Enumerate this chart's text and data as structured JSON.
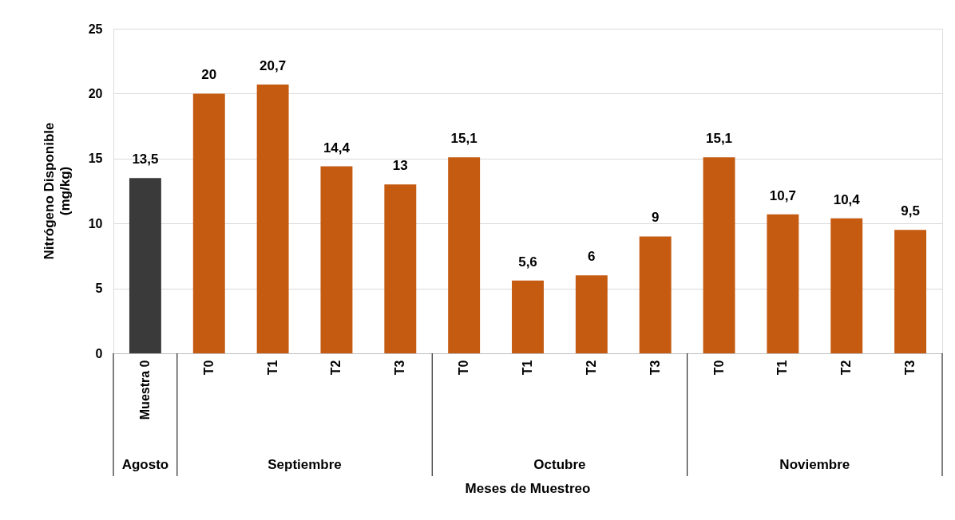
{
  "chart_data": {
    "type": "bar",
    "xlabel": "Meses de Muestreo",
    "ylabel": "Nitrógeno Disponible\n(mg/kg)",
    "categories": [
      "Muestra 0",
      "T0",
      "T1",
      "T2",
      "T3",
      "T0",
      "T1",
      "T2",
      "T3",
      "T0",
      "T1",
      "T2",
      "T3"
    ],
    "values": [
      13.5,
      20,
      20.7,
      14.4,
      13,
      15.1,
      5.6,
      6,
      9,
      15.1,
      10.7,
      10.4,
      9.5
    ],
    "colors": [
      "#3a3a3a",
      "#c55a11",
      "#c55a11",
      "#c55a11",
      "#c55a11",
      "#c55a11",
      "#c55a11",
      "#c55a11",
      "#c55a11",
      "#c55a11",
      "#c55a11",
      "#c55a11",
      "#c55a11"
    ],
    "value_labels": [
      "13,5",
      "20",
      "20,7",
      "14,4",
      "13",
      "15,1",
      "5,6",
      "6",
      "9",
      "15,1",
      "10,7",
      "10,4",
      "9,5"
    ],
    "annotations": [
      "Agosto",
      "Septiembre",
      "Octubre",
      "Noviembre"
    ],
    "ylim": [
      0,
      25
    ],
    "yticks": [
      0,
      5,
      10,
      15,
      20,
      25
    ],
    "grid": "y"
  }
}
